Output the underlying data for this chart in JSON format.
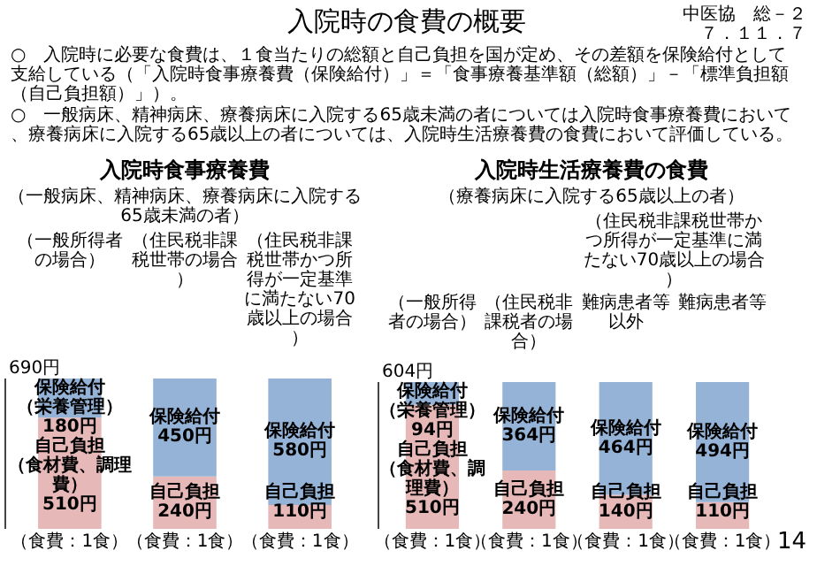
{
  "chart_data": [
    {
      "type": "other",
      "title": "入院時の食費の概要",
      "annotations": [
        "中医協　総－２７．１１．７",
        "○　入院時に必要な食費は、１食当たりの総額と自己負担を国が定め、その差額を保険給付として支給している（「入院時食事療養費（保険給付）」＝「食事療養基準額（総額）」－「標準負担額（自己負担額）」）。",
        "○　一般病床、精神病床、療養病床に入院する65歳未満の者については入院時食事療養費において、療養病床に入院する65歳以上の者については、入院時生活療養費の食費において評価している。"
      ]
    },
    {
      "type": "bar",
      "stacked": true,
      "title": "入院時食事療養費",
      "subtitle": "（一般病床、精神病床、療養病床に入院する65歳未満の者）",
      "categories": [
        "（一般所得者の場合）",
        "（住民税非課税世帯の場合）",
        "（住民税非課税世帯かつ所得が一定基準に満たない70歳以上の場合）"
      ],
      "series": [
        {
          "color": "#e6b8b7",
          "values": [
            510,
            240,
            110
          ],
          "value_labels": [
            "自己負担（食材費、調理費）510円",
            "自己負担240円",
            "自己負担110円"
          ]
        },
        {
          "color": "#95b3d7",
          "values": [
            180,
            450,
            580
          ],
          "value_labels": [
            "保険給付（栄養管理）180円",
            "保険給付450円",
            "保険給付580円"
          ]
        }
      ],
      "annotations": [
        {
          "text": "690円",
          "y": 690
        },
        "（食費：1食）",
        "（食費：1食）",
        "（食費：1食）"
      ]
    },
    {
      "type": "bar",
      "stacked": true,
      "title": "入院時生活療養費の食費",
      "subtitle": "（療養病床に入院する65歳以上の者）",
      "categories": [
        "（一般所得者の場合）",
        "（住民税非課税者の場合）",
        "難病患者等以外",
        "難病患者等"
      ],
      "series": [
        {
          "color": "#e6b8b7",
          "values": [
            510,
            240,
            140,
            110
          ],
          "value_labels": [
            "自己負担（食材費、調理費）510円",
            "自己負担240円",
            "自己負担140円",
            "自己負担110円"
          ]
        },
        {
          "color": "#95b3d7",
          "values": [
            94,
            364,
            464,
            494
          ],
          "value_labels": [
            "保険給付（栄養管理）94円",
            "保険給付364円",
            "保険給付464円",
            "保険給付494円"
          ]
        }
      ],
      "annotations": [
        "（住民税非課税世帯かつ所得が一定基準に満たない70歳以上の場合）",
        "14",
        {
          "text": "604円",
          "y": 604
        },
        "（食費：1食）",
        "（食費：1食）",
        "（食費：1食）",
        "（食費：1食）"
      ]
    }
  ]
}
